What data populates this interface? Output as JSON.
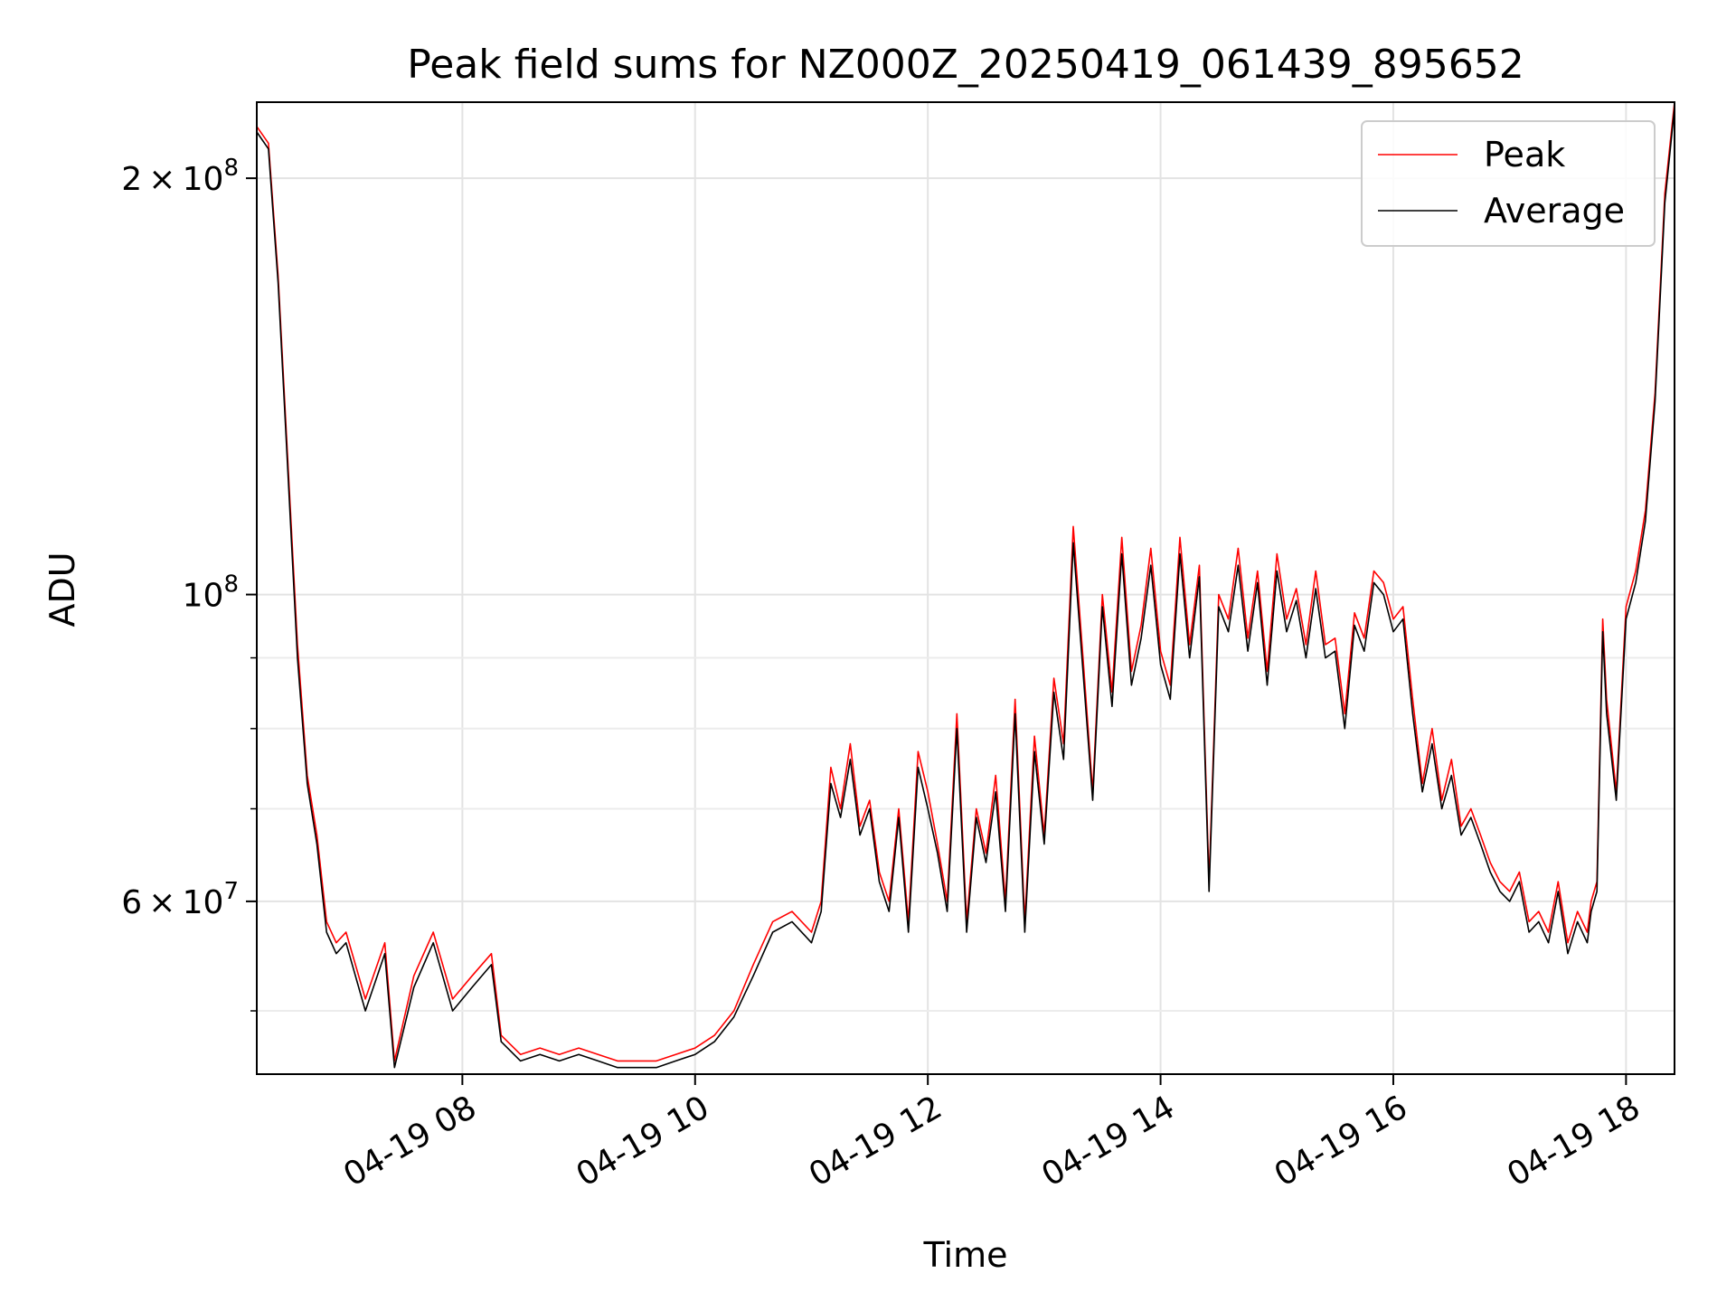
{
  "chart_data": {
    "type": "line",
    "title": "Peak field sums for NZ000Z_20250419_061439_895652",
    "xlabel": "Time",
    "ylabel": "ADU",
    "y_scale": "log",
    "xlim": [
      "2025-04-19 06:14",
      "2025-04-19 18:25"
    ],
    "ylim": [
      45000000,
      227000000
    ],
    "x_ticks": [
      "2025-04-19 08:00",
      "2025-04-19 10:00",
      "2025-04-19 12:00",
      "2025-04-19 14:00",
      "2025-04-19 16:00",
      "2025-04-19 18:00"
    ],
    "x_tick_labels": [
      "04-19 08",
      "04-19 10",
      "04-19 12",
      "04-19 14",
      "04-19 16",
      "04-19 18"
    ],
    "y_major_ticks": [
      60000000,
      100000000,
      200000000
    ],
    "y_major_tick_labels": [
      {
        "mantissa": "6",
        "exponent": "7"
      },
      {
        "mantissa": "",
        "exponent": "8"
      },
      {
        "mantissa": "2",
        "exponent": "8"
      }
    ],
    "y_minor_ticks": [
      50000000,
      70000000,
      80000000,
      90000000
    ],
    "grid": true,
    "legend_position": "top-right",
    "x": [
      "2025-04-19 06:14",
      "2025-04-19 06:20",
      "2025-04-19 06:25",
      "2025-04-19 06:30",
      "2025-04-19 06:35",
      "2025-04-19 06:40",
      "2025-04-19 06:45",
      "2025-04-19 06:50",
      "2025-04-19 06:55",
      "2025-04-19 07:00",
      "2025-04-19 07:10",
      "2025-04-19 07:20",
      "2025-04-19 07:25",
      "2025-04-19 07:35",
      "2025-04-19 07:45",
      "2025-04-19 07:55",
      "2025-04-19 08:05",
      "2025-04-19 08:15",
      "2025-04-19 08:20",
      "2025-04-19 08:30",
      "2025-04-19 08:40",
      "2025-04-19 08:50",
      "2025-04-19 09:00",
      "2025-04-19 09:10",
      "2025-04-19 09:20",
      "2025-04-19 09:30",
      "2025-04-19 09:40",
      "2025-04-19 09:50",
      "2025-04-19 10:00",
      "2025-04-19 10:10",
      "2025-04-19 10:20",
      "2025-04-19 10:30",
      "2025-04-19 10:40",
      "2025-04-19 10:50",
      "2025-04-19 11:00",
      "2025-04-19 11:05",
      "2025-04-19 11:10",
      "2025-04-19 11:15",
      "2025-04-19 11:20",
      "2025-04-19 11:25",
      "2025-04-19 11:30",
      "2025-04-19 11:35",
      "2025-04-19 11:40",
      "2025-04-19 11:45",
      "2025-04-19 11:50",
      "2025-04-19 11:55",
      "2025-04-19 12:00",
      "2025-04-19 12:05",
      "2025-04-19 12:10",
      "2025-04-19 12:15",
      "2025-04-19 12:20",
      "2025-04-19 12:25",
      "2025-04-19 12:30",
      "2025-04-19 12:35",
      "2025-04-19 12:40",
      "2025-04-19 12:45",
      "2025-04-19 12:50",
      "2025-04-19 12:55",
      "2025-04-19 13:00",
      "2025-04-19 13:05",
      "2025-04-19 13:10",
      "2025-04-19 13:15",
      "2025-04-19 13:20",
      "2025-04-19 13:25",
      "2025-04-19 13:30",
      "2025-04-19 13:35",
      "2025-04-19 13:40",
      "2025-04-19 13:45",
      "2025-04-19 13:50",
      "2025-04-19 13:55",
      "2025-04-19 14:00",
      "2025-04-19 14:05",
      "2025-04-19 14:10",
      "2025-04-19 14:15",
      "2025-04-19 14:20",
      "2025-04-19 14:25",
      "2025-04-19 14:30",
      "2025-04-19 14:35",
      "2025-04-19 14:40",
      "2025-04-19 14:45",
      "2025-04-19 14:50",
      "2025-04-19 14:55",
      "2025-04-19 15:00",
      "2025-04-19 15:05",
      "2025-04-19 15:10",
      "2025-04-19 15:15",
      "2025-04-19 15:20",
      "2025-04-19 15:25",
      "2025-04-19 15:30",
      "2025-04-19 15:35",
      "2025-04-19 15:40",
      "2025-04-19 15:45",
      "2025-04-19 15:50",
      "2025-04-19 15:55",
      "2025-04-19 16:00",
      "2025-04-19 16:05",
      "2025-04-19 16:10",
      "2025-04-19 16:15",
      "2025-04-19 16:20",
      "2025-04-19 16:25",
      "2025-04-19 16:30",
      "2025-04-19 16:35",
      "2025-04-19 16:40",
      "2025-04-19 16:45",
      "2025-04-19 16:50",
      "2025-04-19 16:55",
      "2025-04-19 17:00",
      "2025-04-19 17:05",
      "2025-04-19 17:10",
      "2025-04-19 17:15",
      "2025-04-19 17:20",
      "2025-04-19 17:25",
      "2025-04-19 17:30",
      "2025-04-19 17:35",
      "2025-04-19 17:40",
      "2025-04-19 17:42",
      "2025-04-19 17:45",
      "2025-04-19 17:48",
      "2025-04-19 17:50",
      "2025-04-19 17:55",
      "2025-04-19 18:00",
      "2025-04-19 18:05",
      "2025-04-19 18:10",
      "2025-04-19 18:15",
      "2025-04-19 18:20",
      "2025-04-19 18:25"
    ],
    "series": [
      {
        "name": "Peak",
        "color": "#ff0000",
        "values": [
          218000000,
          212000000,
          170000000,
          125000000,
          92000000,
          74000000,
          67000000,
          58000000,
          56000000,
          57000000,
          51000000,
          56000000,
          46000000,
          53000000,
          57000000,
          51000000,
          53000000,
          55000000,
          48000000,
          46500000,
          47000000,
          46500000,
          47000000,
          46500000,
          46000000,
          46000000,
          46000000,
          46500000,
          47000000,
          48000000,
          50000000,
          54000000,
          58000000,
          59000000,
          57000000,
          60000000,
          75000000,
          70000000,
          78000000,
          68000000,
          71000000,
          63000000,
          60000000,
          70000000,
          58000000,
          77000000,
          72000000,
          66000000,
          60000000,
          82000000,
          58000000,
          70000000,
          65000000,
          74000000,
          60000000,
          84000000,
          58000000,
          79000000,
          67000000,
          87000000,
          78000000,
          112000000,
          90000000,
          72000000,
          100000000,
          85000000,
          110000000,
          88000000,
          95000000,
          108000000,
          91000000,
          86000000,
          110000000,
          92000000,
          105000000,
          62000000,
          100000000,
          96000000,
          108000000,
          93000000,
          104000000,
          88000000,
          107000000,
          96000000,
          101000000,
          92000000,
          104000000,
          92000000,
          93000000,
          82000000,
          97000000,
          93000000,
          104000000,
          102000000,
          96000000,
          98000000,
          84000000,
          73000000,
          80000000,
          71000000,
          76000000,
          68000000,
          70000000,
          67000000,
          64000000,
          62000000,
          61000000,
          63000000,
          58000000,
          59000000,
          57000000,
          62000000,
          56000000,
          59000000,
          57000000,
          60000000,
          62000000,
          96000000,
          84000000,
          72000000,
          98000000,
          104000000,
          115000000,
          140000000,
          195000000,
          227000000
        ]
      },
      {
        "name": "Average",
        "color": "#000000",
        "values": [
          216000000,
          210000000,
          168000000,
          123000000,
          90000000,
          73000000,
          66000000,
          57000000,
          55000000,
          56000000,
          50000000,
          55000000,
          45500000,
          52000000,
          56000000,
          50000000,
          52000000,
          54000000,
          47500000,
          46000000,
          46500000,
          46000000,
          46500000,
          46000000,
          45500000,
          45500000,
          45500000,
          46000000,
          46500000,
          47500000,
          49500000,
          53000000,
          57000000,
          58000000,
          56000000,
          59000000,
          73000000,
          69000000,
          76000000,
          67000000,
          70000000,
          62000000,
          59000000,
          69000000,
          57000000,
          75000000,
          70000000,
          65000000,
          59000000,
          80000000,
          57000000,
          69000000,
          64000000,
          72000000,
          59000000,
          82000000,
          57000000,
          77000000,
          66000000,
          85000000,
          76000000,
          109000000,
          88000000,
          71000000,
          98000000,
          83000000,
          107000000,
          86000000,
          93000000,
          105000000,
          89000000,
          84000000,
          107000000,
          90000000,
          103000000,
          61000000,
          98000000,
          94000000,
          105000000,
          91000000,
          102000000,
          86000000,
          104000000,
          94000000,
          99000000,
          90000000,
          101000000,
          90000000,
          91000000,
          80000000,
          95000000,
          91000000,
          102000000,
          100000000,
          94000000,
          96000000,
          82000000,
          72000000,
          78000000,
          70000000,
          74000000,
          67000000,
          69000000,
          66000000,
          63000000,
          61000000,
          60000000,
          62000000,
          57000000,
          58000000,
          56000000,
          61000000,
          55000000,
          58000000,
          56000000,
          59000000,
          61000000,
          94000000,
          82000000,
          71000000,
          96000000,
          102000000,
          113000000,
          138000000,
          192000000,
          225000000
        ]
      }
    ]
  }
}
